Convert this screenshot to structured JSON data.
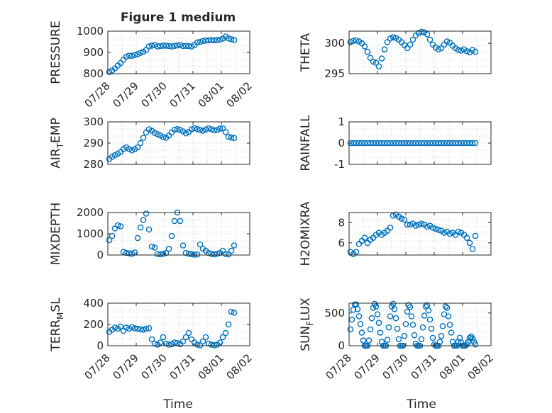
{
  "figure": {
    "title": "Figure 1 medium",
    "xlabel": "Time",
    "colors": {
      "marker": "#0072BD",
      "axis": "#262626",
      "grid": "#b0b0b0",
      "background": "#ffffff"
    }
  },
  "chart_data": [
    {
      "type": "scatter",
      "title": "Figure 1 medium",
      "ylabel": "PRESSURE",
      "ylim": [
        800,
        1000
      ],
      "yticks": [
        "800",
        "900",
        "1000"
      ],
      "xlim": [
        0,
        5
      ],
      "xticks": [
        "07/28",
        "07/29",
        "07/30",
        "07/31",
        "08/01",
        "08/02"
      ],
      "grid": true,
      "series": [
        {
          "x": [
            0.05,
            0.15,
            0.25,
            0.35,
            0.45,
            0.55,
            0.65,
            0.75,
            0.85,
            0.95,
            1.05,
            1.15,
            1.25,
            1.35,
            1.45,
            1.55,
            1.65,
            1.75,
            1.85,
            1.95,
            2.05,
            2.15,
            2.25,
            2.35,
            2.45,
            2.55,
            2.65,
            2.75,
            2.85,
            2.95,
            3.05,
            3.15,
            3.25,
            3.35,
            3.45,
            3.55,
            3.65,
            3.75,
            3.85,
            3.95,
            4.05,
            4.15,
            4.25,
            4.35,
            4.45
          ],
          "y": [
            808,
            815,
            825,
            838,
            850,
            866,
            880,
            885,
            884,
            888,
            892,
            898,
            903,
            912,
            928,
            932,
            935,
            928,
            930,
            932,
            932,
            930,
            928,
            931,
            933,
            935,
            930,
            931,
            930,
            928,
            935,
            947,
            950,
            954,
            956,
            957,
            958,
            957,
            958,
            960,
            965,
            975,
            966,
            962,
            958
          ]
        }
      ]
    },
    {
      "type": "scatter",
      "ylabel": "THETA",
      "ylim": [
        295,
        302
      ],
      "yticks": [
        "295",
        "300"
      ],
      "xlim": [
        0,
        5
      ],
      "grid": true,
      "series": [
        {
          "x": [
            0.05,
            0.15,
            0.25,
            0.35,
            0.45,
            0.55,
            0.65,
            0.75,
            0.85,
            0.95,
            1.05,
            1.15,
            1.25,
            1.35,
            1.45,
            1.55,
            1.65,
            1.75,
            1.85,
            1.95,
            2.05,
            2.15,
            2.25,
            2.35,
            2.45,
            2.55,
            2.65,
            2.75,
            2.85,
            2.95,
            3.05,
            3.15,
            3.25,
            3.35,
            3.45,
            3.55,
            3.65,
            3.75,
            3.85,
            3.95,
            4.05,
            4.15,
            4.25,
            4.35,
            4.45
          ],
          "y": [
            300.2,
            300.4,
            300.5,
            300.3,
            300.0,
            299.5,
            298.6,
            297.6,
            297.0,
            296.8,
            296.2,
            297.5,
            299.0,
            300.2,
            300.8,
            301.0,
            300.9,
            300.6,
            300.2,
            299.7,
            299.2,
            299.8,
            300.6,
            301.3,
            301.7,
            301.9,
            301.8,
            301.5,
            300.6,
            299.8,
            299.3,
            299.0,
            299.2,
            299.8,
            300.3,
            300.1,
            299.6,
            299.2,
            298.9,
            298.8,
            299.0,
            298.7,
            298.5,
            298.9,
            298.6
          ]
        }
      ]
    },
    {
      "type": "scatter",
      "ylabel": "AIR_TEMP",
      "ylim": [
        280,
        300
      ],
      "yticks": [
        "280",
        "290",
        "300"
      ],
      "xlim": [
        0,
        5
      ],
      "grid": true,
      "series": [
        {
          "x": [
            0.05,
            0.15,
            0.25,
            0.35,
            0.45,
            0.55,
            0.65,
            0.75,
            0.85,
            0.95,
            1.05,
            1.15,
            1.25,
            1.35,
            1.45,
            1.55,
            1.65,
            1.75,
            1.85,
            1.95,
            2.05,
            2.15,
            2.25,
            2.35,
            2.45,
            2.55,
            2.65,
            2.75,
            2.85,
            2.95,
            3.05,
            3.15,
            3.25,
            3.35,
            3.45,
            3.55,
            3.65,
            3.75,
            3.85,
            3.95,
            4.05,
            4.15,
            4.25,
            4.35,
            4.45
          ],
          "y": [
            282.6,
            283.5,
            284.3,
            285.0,
            285.8,
            287.2,
            288.0,
            287.2,
            286.6,
            287.2,
            288.0,
            290.0,
            292.5,
            295.0,
            296.5,
            295.8,
            294.8,
            294.2,
            293.6,
            292.8,
            292.5,
            293.5,
            295.0,
            296.3,
            296.6,
            296.2,
            295.5,
            294.6,
            295.2,
            296.5,
            297.0,
            296.6,
            296.2,
            295.8,
            296.4,
            297.0,
            296.5,
            296.0,
            296.2,
            296.8,
            296.9,
            295.2,
            293.0,
            292.6,
            292.4
          ]
        }
      ]
    },
    {
      "type": "scatter",
      "ylabel": "RAINFALL",
      "ylim": [
        -1,
        1
      ],
      "yticks": [
        "-1",
        "0",
        "1"
      ],
      "xlim": [
        0,
        5
      ],
      "grid": true,
      "series": [
        {
          "x": [
            0.05,
            0.15,
            0.25,
            0.35,
            0.45,
            0.55,
            0.65,
            0.75,
            0.85,
            0.95,
            1.05,
            1.15,
            1.25,
            1.35,
            1.45,
            1.55,
            1.65,
            1.75,
            1.85,
            1.95,
            2.05,
            2.15,
            2.25,
            2.35,
            2.45,
            2.55,
            2.65,
            2.75,
            2.85,
            2.95,
            3.05,
            3.15,
            3.25,
            3.35,
            3.45,
            3.55,
            3.65,
            3.75,
            3.85,
            3.95,
            4.05,
            4.15,
            4.25,
            4.35,
            4.45
          ],
          "y": [
            0,
            0,
            0,
            0,
            0,
            0,
            0,
            0,
            0,
            0,
            0,
            0,
            0,
            0,
            0,
            0,
            0,
            0,
            0,
            0,
            0,
            0,
            0,
            0,
            0,
            0,
            0,
            0,
            0,
            0,
            0,
            0,
            0,
            0,
            0,
            0,
            0,
            0,
            0,
            0,
            0,
            0,
            0,
            0,
            0
          ]
        }
      ]
    },
    {
      "type": "scatter",
      "ylabel": "MIXDEPTH",
      "ylim": [
        0,
        2000
      ],
      "yticks": [
        "0",
        "1000",
        "2000"
      ],
      "xlim": [
        0,
        5
      ],
      "grid": true,
      "series": [
        {
          "x": [
            0.05,
            0.15,
            0.25,
            0.35,
            0.45,
            0.55,
            0.65,
            0.75,
            0.85,
            0.95,
            1.05,
            1.15,
            1.25,
            1.35,
            1.45,
            1.55,
            1.65,
            1.75,
            1.85,
            1.95,
            2.05,
            2.15,
            2.25,
            2.35,
            2.45,
            2.55,
            2.65,
            2.75,
            2.85,
            2.95,
            3.05,
            3.15,
            3.25,
            3.35,
            3.45,
            3.55,
            3.65,
            3.75,
            3.85,
            3.95,
            4.05,
            4.15,
            4.25,
            4.35,
            4.45
          ],
          "y": [
            700,
            900,
            1250,
            1400,
            1350,
            150,
            100,
            80,
            60,
            120,
            800,
            1300,
            1650,
            1950,
            1200,
            400,
            350,
            50,
            30,
            60,
            100,
            300,
            900,
            1600,
            2000,
            1600,
            450,
            100,
            60,
            40,
            20,
            30,
            500,
            300,
            200,
            100,
            50,
            30,
            60,
            100,
            200,
            50,
            30,
            200,
            450
          ]
        }
      ]
    },
    {
      "type": "scatter",
      "ylabel": "H2OMIXRA",
      "ylim": [
        4.8,
        9
      ],
      "yticks": [
        "6",
        "8"
      ],
      "xlim": [
        0,
        5
      ],
      "grid": true,
      "series": [
        {
          "x": [
            0.05,
            0.15,
            0.25,
            0.35,
            0.45,
            0.55,
            0.65,
            0.75,
            0.85,
            0.95,
            1.05,
            1.15,
            1.25,
            1.35,
            1.45,
            1.55,
            1.65,
            1.75,
            1.85,
            1.95,
            2.05,
            2.15,
            2.25,
            2.35,
            2.45,
            2.55,
            2.65,
            2.75,
            2.85,
            2.95,
            3.05,
            3.15,
            3.25,
            3.35,
            3.45,
            3.55,
            3.65,
            3.75,
            3.85,
            3.95,
            4.05,
            4.15,
            4.25,
            4.35,
            4.45
          ],
          "y": [
            5.1,
            4.9,
            5.1,
            5.9,
            6.2,
            6.5,
            6.0,
            6.3,
            6.5,
            6.8,
            7.0,
            6.8,
            7.0,
            7.2,
            7.5,
            8.7,
            8.8,
            8.6,
            8.4,
            8.3,
            7.8,
            7.8,
            7.9,
            7.7,
            7.8,
            7.9,
            7.8,
            7.6,
            7.7,
            7.5,
            7.4,
            7.3,
            7.2,
            7.0,
            7.1,
            6.9,
            7.0,
            6.8,
            7.1,
            7.0,
            6.8,
            6.5,
            6.0,
            5.4,
            6.7
          ]
        }
      ]
    },
    {
      "type": "scatter",
      "ylabel": "TERR_MSL",
      "ylim": [
        0,
        400
      ],
      "yticks": [
        "0",
        "200",
        "400"
      ],
      "xlim": [
        0,
        5
      ],
      "xticks": [
        "07/28",
        "07/29",
        "07/30",
        "07/31",
        "08/01",
        "08/02"
      ],
      "xlabel": "Time",
      "grid": true,
      "series": [
        {
          "x": [
            0.05,
            0.15,
            0.25,
            0.35,
            0.45,
            0.55,
            0.65,
            0.75,
            0.85,
            0.95,
            1.05,
            1.15,
            1.25,
            1.35,
            1.45,
            1.55,
            1.65,
            1.75,
            1.85,
            1.95,
            2.05,
            2.15,
            2.25,
            2.35,
            2.45,
            2.55,
            2.65,
            2.75,
            2.85,
            2.95,
            3.05,
            3.15,
            3.25,
            3.35,
            3.45,
            3.55,
            3.65,
            3.75,
            3.85,
            3.95,
            4.05,
            4.15,
            4.25,
            4.35,
            4.45
          ],
          "y": [
            130,
            150,
            170,
            160,
            180,
            140,
            170,
            160,
            175,
            165,
            160,
            155,
            150,
            160,
            165,
            60,
            20,
            10,
            30,
            80,
            20,
            10,
            15,
            30,
            25,
            15,
            40,
            80,
            120,
            60,
            30,
            10,
            5,
            40,
            80,
            20,
            10,
            5,
            10,
            30,
            80,
            120,
            200,
            320,
            310
          ]
        }
      ]
    },
    {
      "type": "scatter",
      "ylabel": "SUN_FLUX",
      "ylim": [
        0,
        650
      ],
      "yticks": [
        "0",
        "500"
      ],
      "xlim": [
        0,
        5
      ],
      "xticks": [
        "07/28",
        "07/29",
        "07/30",
        "07/31",
        "08/01",
        "08/02"
      ],
      "xlabel": "Time",
      "grid": true,
      "series": [
        {
          "x": [
            0.05,
            0.1,
            0.15,
            0.2,
            0.25,
            0.3,
            0.35,
            0.4,
            0.45,
            0.5,
            0.55,
            0.6,
            0.65,
            0.7,
            0.75,
            0.8,
            0.85,
            0.9,
            0.95,
            1.0,
            1.05,
            1.1,
            1.15,
            1.2,
            1.25,
            1.3,
            1.35,
            1.4,
            1.45,
            1.5,
            1.55,
            1.6,
            1.65,
            1.7,
            1.75,
            1.8,
            1.85,
            1.9,
            1.95,
            2.0,
            2.05,
            2.1,
            2.15,
            2.2,
            2.25,
            2.3,
            2.35,
            2.4,
            2.45,
            2.5,
            2.55,
            2.6,
            2.65,
            2.7,
            2.75,
            2.8,
            2.85,
            2.9,
            2.95,
            3.0,
            3.05,
            3.1,
            3.15,
            3.2,
            3.25,
            3.3,
            3.35,
            3.4,
            3.45,
            3.5,
            3.55,
            3.6,
            3.65,
            3.7,
            3.75,
            3.8,
            3.85,
            3.9,
            3.95,
            4.0,
            4.05,
            4.1,
            4.15,
            4.2,
            4.25,
            4.3,
            4.35,
            4.4,
            4.45
          ],
          "y": [
            250,
            400,
            550,
            630,
            630,
            560,
            450,
            330,
            200,
            80,
            0,
            0,
            0,
            80,
            250,
            420,
            580,
            640,
            600,
            480,
            350,
            200,
            60,
            0,
            0,
            0,
            90,
            280,
            450,
            600,
            640,
            560,
            420,
            260,
            100,
            0,
            0,
            0,
            150,
            330,
            520,
            620,
            590,
            450,
            320,
            160,
            30,
            0,
            0,
            0,
            100,
            280,
            460,
            600,
            620,
            540,
            400,
            260,
            120,
            20,
            0,
            0,
            0,
            60,
            150,
            300,
            480,
            600,
            580,
            450,
            320,
            200,
            60,
            0,
            0,
            0,
            60,
            120,
            50,
            0,
            0,
            0,
            20,
            60,
            120,
            140,
            110,
            60,
            20
          ]
        }
      ]
    }
  ]
}
